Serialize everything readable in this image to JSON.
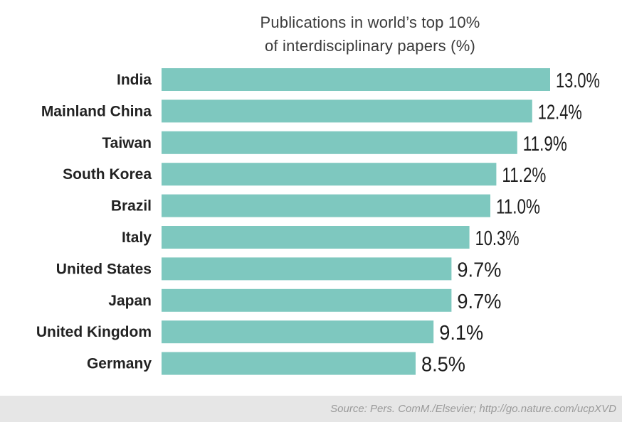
{
  "chart_data": {
    "type": "bar",
    "orientation": "horizontal",
    "title": "Publications in world’s top 10% of interdisciplinary papers (%)",
    "title_lines": [
      "Publications in world’s top 10%",
      "of interdisciplinary papers (%)"
    ],
    "categories": [
      "India",
      "Mainland China",
      "Taiwan",
      "South Korea",
      "Brazil",
      "Italy",
      "United States",
      "Japan",
      "United Kingdom",
      "Germany"
    ],
    "values": [
      13.0,
      12.4,
      11.9,
      11.2,
      11.0,
      10.3,
      9.7,
      9.7,
      9.1,
      8.5
    ],
    "value_labels": [
      "13.0%",
      "12.4%",
      "11.9%",
      "11.2%",
      "11.0%",
      "10.3%",
      "9.7%",
      "9.7%",
      "9.1%",
      "8.5%"
    ],
    "xlabel": "",
    "ylabel": "",
    "grid": false,
    "legend": "none",
    "bar_color": "#7ec8bf"
  },
  "source": "Source: Pers. ComM./Elsevier; http://go.nature.com/ucpXVD"
}
